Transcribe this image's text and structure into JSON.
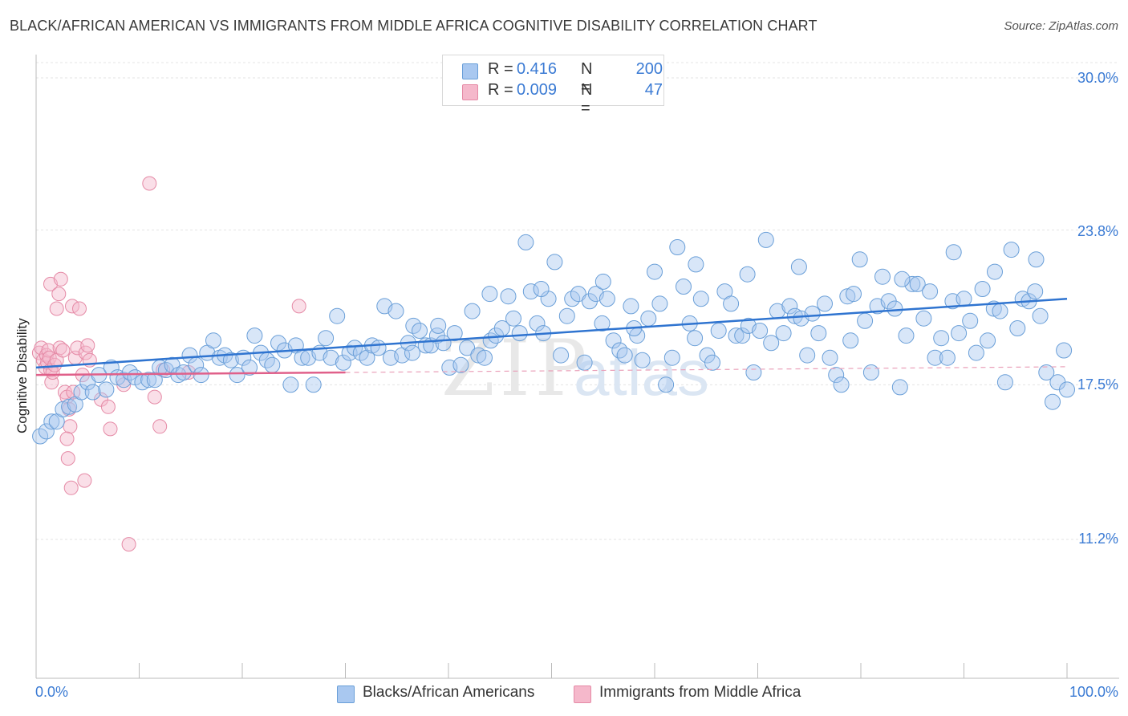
{
  "header": {
    "title": "BLACK/AFRICAN AMERICAN VS IMMIGRANTS FROM MIDDLE AFRICA COGNITIVE DISABILITY CORRELATION CHART",
    "source": "Source: ZipAtlas.com"
  },
  "legend": {
    "r_label": "R =",
    "n_label": "N =",
    "rows": [
      {
        "r": "0.416",
        "n": "200",
        "color": "#a9c8f0",
        "border": "#6a9fd8"
      },
      {
        "r": "0.009",
        "n": "47",
        "color": "#f5b8cb",
        "border": "#e58aa6"
      }
    ]
  },
  "bottom_legend": {
    "items": [
      {
        "label": "Blacks/African Americans",
        "color": "#a9c8f0",
        "border": "#6a9fd8"
      },
      {
        "label": "Immigrants from Middle Africa",
        "color": "#f5b8cb",
        "border": "#e58aa6"
      }
    ]
  },
  "watermark": {
    "zip": "ZIP",
    "atlas": "atlas"
  },
  "chart_data": {
    "type": "scatter",
    "title": "BLACK/AFRICAN AMERICAN VS IMMIGRANTS FROM MIDDLE AFRICA COGNITIVE DISABILITY CORRELATION CHART",
    "xlabel": "",
    "ylabel": "Cognitive Disability",
    "xlim": [
      0,
      100
    ],
    "ylim": [
      5.0,
      31.5
    ],
    "x_tick_labels": [
      "0.0%",
      "100.0%"
    ],
    "y_ticks": [
      30.0,
      23.8,
      17.5,
      11.2
    ],
    "y_tick_labels": [
      "30.0%",
      "23.8%",
      "17.5%",
      "11.2%"
    ],
    "grid": true,
    "series": [
      {
        "name": "Blacks/African Americans",
        "color": "#6a9fd8",
        "fill": "#a9c8f0",
        "trend": {
          "x0": 0,
          "y0": 18.2,
          "x1": 100,
          "y1": 21.0
        },
        "points": [
          [
            0.4,
            15.4
          ],
          [
            1.0,
            15.6
          ],
          [
            1.5,
            16.0
          ],
          [
            2.0,
            16.0
          ],
          [
            2.6,
            16.5
          ],
          [
            3.2,
            16.6
          ],
          [
            3.8,
            16.7
          ],
          [
            4.4,
            17.2
          ],
          [
            5.0,
            17.6
          ],
          [
            5.5,
            17.2
          ],
          [
            6.1,
            17.9
          ],
          [
            6.8,
            17.3
          ],
          [
            7.3,
            18.2
          ],
          [
            7.9,
            17.8
          ],
          [
            8.5,
            17.7
          ],
          [
            9.1,
            18.0
          ],
          [
            9.6,
            17.8
          ],
          [
            10.3,
            17.6
          ],
          [
            10.9,
            17.7
          ],
          [
            11.5,
            17.7
          ],
          [
            12.0,
            18.2
          ],
          [
            12.6,
            18.1
          ],
          [
            13.2,
            18.3
          ],
          [
            13.8,
            17.9
          ],
          [
            14.3,
            18.0
          ],
          [
            14.9,
            18.7
          ],
          [
            15.5,
            18.3
          ],
          [
            16.0,
            17.9
          ],
          [
            16.6,
            18.8
          ],
          [
            17.2,
            19.3
          ],
          [
            17.8,
            18.6
          ],
          [
            18.3,
            18.7
          ],
          [
            18.9,
            18.5
          ],
          [
            19.5,
            17.9
          ],
          [
            20.1,
            18.6
          ],
          [
            20.7,
            18.2
          ],
          [
            21.2,
            19.5
          ],
          [
            21.8,
            18.8
          ],
          [
            22.4,
            18.5
          ],
          [
            22.9,
            18.3
          ],
          [
            23.5,
            19.2
          ],
          [
            24.1,
            18.9
          ],
          [
            24.7,
            17.5
          ],
          [
            25.2,
            19.1
          ],
          [
            25.8,
            18.6
          ],
          [
            26.4,
            18.6
          ],
          [
            26.9,
            17.5
          ],
          [
            27.5,
            18.8
          ],
          [
            28.1,
            19.4
          ],
          [
            28.6,
            18.6
          ],
          [
            29.2,
            20.3
          ],
          [
            29.8,
            18.4
          ],
          [
            30.4,
            18.8
          ],
          [
            30.9,
            19.0
          ],
          [
            31.5,
            18.8
          ],
          [
            32.1,
            18.6
          ],
          [
            32.6,
            19.1
          ],
          [
            33.2,
            19.0
          ],
          [
            33.8,
            20.7
          ],
          [
            34.4,
            18.6
          ],
          [
            34.9,
            20.5
          ],
          [
            35.5,
            18.7
          ],
          [
            36.1,
            19.2
          ],
          [
            36.6,
            19.9
          ],
          [
            37.2,
            19.7
          ],
          [
            37.8,
            19.1
          ],
          [
            38.3,
            19.1
          ],
          [
            38.9,
            19.5
          ],
          [
            39.5,
            19.2
          ],
          [
            40.1,
            18.2
          ],
          [
            40.6,
            19.6
          ],
          [
            41.2,
            18.3
          ],
          [
            41.8,
            19.0
          ],
          [
            42.3,
            20.5
          ],
          [
            42.9,
            18.7
          ],
          [
            43.5,
            18.6
          ],
          [
            44.1,
            19.3
          ],
          [
            44.6,
            19.5
          ],
          [
            45.2,
            19.8
          ],
          [
            45.8,
            21.1
          ],
          [
            46.3,
            20.2
          ],
          [
            46.9,
            19.6
          ],
          [
            47.5,
            23.3
          ],
          [
            48.0,
            21.3
          ],
          [
            48.6,
            20.0
          ],
          [
            49.2,
            19.6
          ],
          [
            49.7,
            21.0
          ],
          [
            50.3,
            22.5
          ],
          [
            50.9,
            18.7
          ],
          [
            51.5,
            20.3
          ],
          [
            52.0,
            21.0
          ],
          [
            52.6,
            21.2
          ],
          [
            53.2,
            18.4
          ],
          [
            53.7,
            20.9
          ],
          [
            54.3,
            21.2
          ],
          [
            54.9,
            20.0
          ],
          [
            55.4,
            21.0
          ],
          [
            56.0,
            19.3
          ],
          [
            56.6,
            18.9
          ],
          [
            57.1,
            18.7
          ],
          [
            57.7,
            20.7
          ],
          [
            58.3,
            19.5
          ],
          [
            58.8,
            18.5
          ],
          [
            59.4,
            20.2
          ],
          [
            60.0,
            22.1
          ],
          [
            60.5,
            20.8
          ],
          [
            61.1,
            17.5
          ],
          [
            61.7,
            18.6
          ],
          [
            62.2,
            23.1
          ],
          [
            62.8,
            21.5
          ],
          [
            63.4,
            20.0
          ],
          [
            63.9,
            19.4
          ],
          [
            64.5,
            21.0
          ],
          [
            65.1,
            18.7
          ],
          [
            65.6,
            18.4
          ],
          [
            66.2,
            19.7
          ],
          [
            66.8,
            21.3
          ],
          [
            67.4,
            20.8
          ],
          [
            67.9,
            19.5
          ],
          [
            68.5,
            19.5
          ],
          [
            69.1,
            19.9
          ],
          [
            69.6,
            18.0
          ],
          [
            70.2,
            19.7
          ],
          [
            70.8,
            23.4
          ],
          [
            71.3,
            19.2
          ],
          [
            71.9,
            20.5
          ],
          [
            72.5,
            19.6
          ],
          [
            73.1,
            20.7
          ],
          [
            73.6,
            20.3
          ],
          [
            74.2,
            20.2
          ],
          [
            74.8,
            18.7
          ],
          [
            75.3,
            20.4
          ],
          [
            75.9,
            19.6
          ],
          [
            76.5,
            20.8
          ],
          [
            77.0,
            18.6
          ],
          [
            77.6,
            17.9
          ],
          [
            78.1,
            17.5
          ],
          [
            78.7,
            21.1
          ],
          [
            79.3,
            21.2
          ],
          [
            79.9,
            22.6
          ],
          [
            80.4,
            20.1
          ],
          [
            81.0,
            18.0
          ],
          [
            81.6,
            20.7
          ],
          [
            82.1,
            21.9
          ],
          [
            82.7,
            20.9
          ],
          [
            83.3,
            20.6
          ],
          [
            83.8,
            17.4
          ],
          [
            84.4,
            19.5
          ],
          [
            85.0,
            21.6
          ],
          [
            85.5,
            21.6
          ],
          [
            86.1,
            20.2
          ],
          [
            86.7,
            21.3
          ],
          [
            87.2,
            18.6
          ],
          [
            87.8,
            19.4
          ],
          [
            88.4,
            18.6
          ],
          [
            88.9,
            20.9
          ],
          [
            89.5,
            19.6
          ],
          [
            90.0,
            21.0
          ],
          [
            90.6,
            20.1
          ],
          [
            91.2,
            18.8
          ],
          [
            91.8,
            21.4
          ],
          [
            92.3,
            19.3
          ],
          [
            92.9,
            20.6
          ],
          [
            93.5,
            20.5
          ],
          [
            94.0,
            17.6
          ],
          [
            94.6,
            23.0
          ],
          [
            95.2,
            19.8
          ],
          [
            95.7,
            21.0
          ],
          [
            96.3,
            20.9
          ],
          [
            96.9,
            21.3
          ],
          [
            97.4,
            20.3
          ],
          [
            98.0,
            18.0
          ],
          [
            98.6,
            16.8
          ],
          [
            99.1,
            17.6
          ],
          [
            99.7,
            18.9
          ],
          [
            100.0,
            17.3
          ],
          [
            97.0,
            22.6
          ],
          [
            93.0,
            22.1
          ],
          [
            89.0,
            22.9
          ],
          [
            84.0,
            21.8
          ],
          [
            79.0,
            19.3
          ],
          [
            74.0,
            22.3
          ],
          [
            69.0,
            22.0
          ],
          [
            64.0,
            22.4
          ],
          [
            58.0,
            19.8
          ],
          [
            55.0,
            21.7
          ],
          [
            49.0,
            21.4
          ],
          [
            44.0,
            21.2
          ],
          [
            39.0,
            19.9
          ],
          [
            36.5,
            18.8
          ]
        ]
      },
      {
        "name": "Immigrants from Middle Africa",
        "color": "#e58aa6",
        "fill": "#f5b8cb",
        "trend": {
          "x0": 0,
          "y0": 17.9,
          "x1": 30,
          "y1": 18.0
        },
        "points": [
          [
            0.3,
            18.8
          ],
          [
            0.5,
            19.0
          ],
          [
            0.7,
            18.5
          ],
          [
            0.9,
            18.2
          ],
          [
            1.0,
            18.7
          ],
          [
            1.1,
            18.4
          ],
          [
            1.2,
            18.9
          ],
          [
            1.3,
            18.6
          ],
          [
            1.4,
            18.1
          ],
          [
            1.5,
            17.6
          ],
          [
            1.6,
            18.0
          ],
          [
            1.8,
            18.3
          ],
          [
            2.0,
            18.5
          ],
          [
            1.4,
            21.6
          ],
          [
            2.2,
            21.2
          ],
          [
            2.4,
            21.8
          ],
          [
            2.0,
            20.6
          ],
          [
            2.3,
            19.0
          ],
          [
            2.6,
            18.9
          ],
          [
            2.8,
            17.2
          ],
          [
            3.0,
            17.0
          ],
          [
            3.2,
            16.5
          ],
          [
            3.5,
            20.7
          ],
          [
            3.6,
            17.2
          ],
          [
            3.8,
            18.6
          ],
          [
            4.0,
            19.0
          ],
          [
            4.2,
            20.6
          ],
          [
            4.5,
            17.9
          ],
          [
            4.8,
            18.8
          ],
          [
            5.0,
            19.1
          ],
          [
            5.2,
            18.5
          ],
          [
            3.3,
            15.8
          ],
          [
            3.0,
            15.3
          ],
          [
            3.1,
            14.5
          ],
          [
            3.4,
            13.3
          ],
          [
            4.7,
            13.6
          ],
          [
            6.3,
            16.9
          ],
          [
            7.0,
            16.6
          ],
          [
            7.2,
            15.7
          ],
          [
            9.0,
            11.0
          ],
          [
            11.0,
            25.7
          ],
          [
            11.5,
            17.0
          ],
          [
            12.0,
            15.8
          ],
          [
            12.3,
            18.1
          ],
          [
            14.8,
            18.0
          ],
          [
            25.5,
            20.7
          ],
          [
            8.5,
            17.5
          ]
        ]
      }
    ]
  }
}
